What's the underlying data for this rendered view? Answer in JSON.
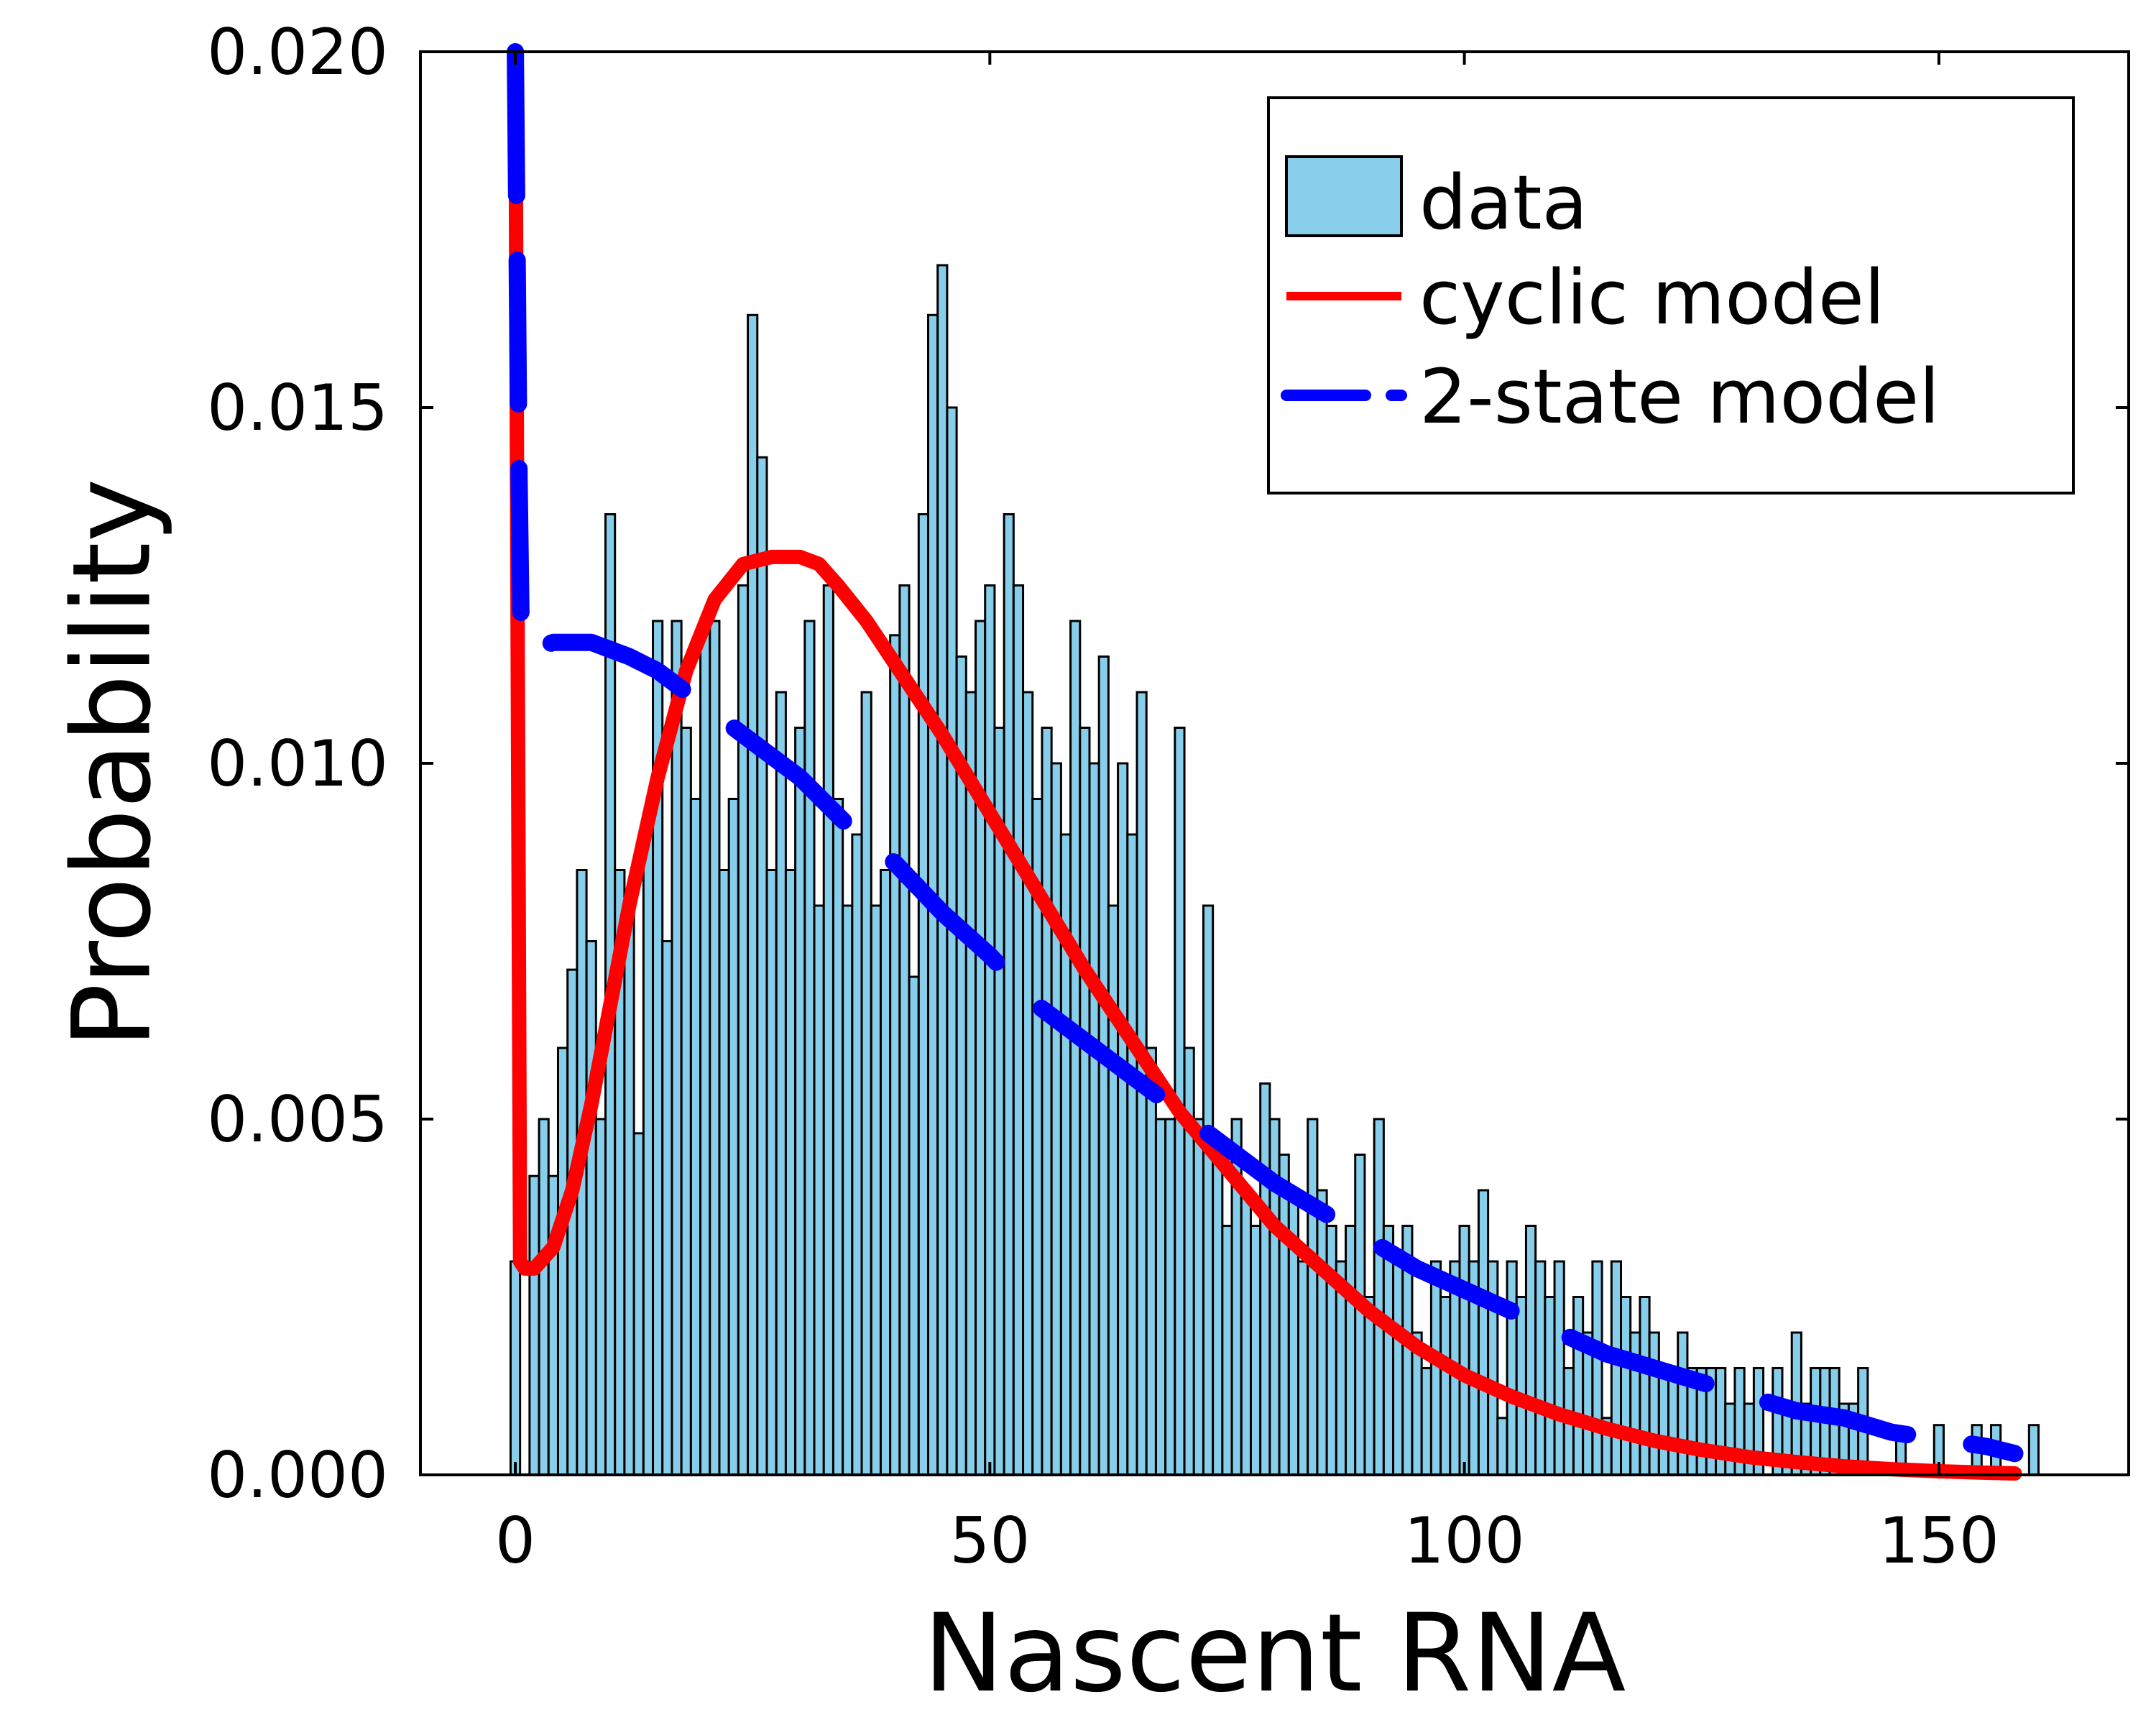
{
  "chart_data": {
    "type": "bar",
    "xlabel": "Nascent RNA",
    "ylabel": "Probability",
    "xlim": [
      -10,
      170
    ],
    "ylim": [
      0,
      0.02
    ],
    "x_ticks": [
      0,
      50,
      100,
      150
    ],
    "x_tick_labels": [
      "0",
      "50",
      "100",
      "150"
    ],
    "y_ticks": [
      0,
      0.005,
      0.01,
      0.015,
      0.02
    ],
    "y_tick_labels": [
      "0.000",
      "0.005",
      "0.010",
      "0.015",
      "0.020"
    ],
    "grid": false,
    "legend_position": "top-right",
    "histogram": {
      "name": "data",
      "color": "#87CEEB",
      "edge_color": "#000000",
      "x_start": 0,
      "bin_width": 1,
      "values": [
        0.003,
        0,
        0.0042,
        0.005,
        0.0042,
        0.006,
        0.0071,
        0.0085,
        0.0075,
        0.005,
        0.0135,
        0.0085,
        0.008,
        0.0048,
        0.0093,
        0.012,
        0.0075,
        0.012,
        0.0105,
        0.0095,
        0.012,
        0.012,
        0.0085,
        0.0095,
        0.0125,
        0.0163,
        0.0143,
        0.0085,
        0.011,
        0.0085,
        0.0105,
        0.012,
        0.008,
        0.0125,
        0.0095,
        0.008,
        0.009,
        0.011,
        0.008,
        0.0085,
        0.0118,
        0.0125,
        0.007,
        0.0135,
        0.0163,
        0.017,
        0.015,
        0.0115,
        0.011,
        0.012,
        0.0125,
        0.0105,
        0.0135,
        0.0125,
        0.011,
        0.0095,
        0.0105,
        0.01,
        0.009,
        0.012,
        0.0105,
        0.01,
        0.0115,
        0.008,
        0.01,
        0.009,
        0.011,
        0.006,
        0.005,
        0.005,
        0.0105,
        0.006,
        0.005,
        0.008,
        0.0045,
        0.0035,
        0.005,
        0.004,
        0.0035,
        0.0055,
        0.005,
        0.0045,
        0.004,
        0.003,
        0.005,
        0.004,
        0.0035,
        0.003,
        0.0035,
        0.0045,
        0.0025,
        0.005,
        0.0035,
        0.003,
        0.0035,
        0.002,
        0.0015,
        0.003,
        0.0025,
        0.003,
        0.0035,
        0.003,
        0.004,
        0.003,
        0.0008,
        0.003,
        0.0025,
        0.0035,
        0.003,
        0.0025,
        0.003,
        0.0015,
        0.0025,
        0.002,
        0.003,
        0.0008,
        0.003,
        0.0025,
        0.002,
        0.0025,
        0.002,
        0.0015,
        0.0015,
        0.002,
        0.0015,
        0.0015,
        0.0015,
        0.0015,
        0.001,
        0.0015,
        0.001,
        0.0015,
        0,
        0.0015,
        0.001,
        0.002,
        0.001,
        0.0015,
        0.0015,
        0.0015,
        0.001,
        0.001,
        0.0015,
        0,
        0,
        0,
        0.0005,
        0,
        0,
        0,
        0.0007,
        0,
        0,
        0,
        0.0007,
        0,
        0.0007,
        0,
        0,
        0,
        0.0007
      ]
    },
    "series": [
      {
        "name": "cyclic model",
        "style": "solid",
        "color": "#ff0000",
        "x": [
          0,
          0.5,
          1,
          2,
          4,
          6,
          8,
          10,
          12,
          15,
          18,
          21,
          24,
          27,
          30,
          32,
          34,
          37,
          40,
          45,
          50,
          55,
          60,
          65,
          70,
          75,
          80,
          85,
          90,
          95,
          100,
          105,
          110,
          115,
          120,
          125,
          130,
          135,
          140,
          145,
          150,
          155,
          158
        ],
        "y": [
          0.02,
          0.003,
          0.0029,
          0.0029,
          0.0032,
          0.004,
          0.0052,
          0.0066,
          0.008,
          0.0098,
          0.0113,
          0.0123,
          0.0128,
          0.0129,
          0.0129,
          0.0128,
          0.0125,
          0.012,
          0.0114,
          0.0104,
          0.0093,
          0.0082,
          0.0071,
          0.0061,
          0.0051,
          0.0043,
          0.0035,
          0.0029,
          0.0023,
          0.0018,
          0.0014,
          0.0011,
          0.00085,
          0.00065,
          0.00048,
          0.00035,
          0.00025,
          0.00018,
          0.00012,
          8e-05,
          5e-05,
          3e-05,
          2e-05
        ]
      },
      {
        "name": "2-state model",
        "style": "dashed",
        "color": "#0000ff",
        "x": [
          0,
          0.2,
          0.4,
          0.6,
          1,
          2,
          4,
          6,
          8,
          10,
          12,
          15,
          18,
          21,
          24,
          27,
          30,
          33,
          36,
          40,
          45,
          50,
          55,
          60,
          65,
          70,
          75,
          80,
          85,
          90,
          95,
          100,
          105,
          110,
          115,
          120,
          125,
          130,
          135,
          140,
          145,
          150,
          155,
          158
        ],
        "y": [
          0.02,
          0.017,
          0.014,
          0.012,
          0.0116,
          0.0116,
          0.0117,
          0.0117,
          0.0117,
          0.0116,
          0.0115,
          0.0113,
          0.011,
          0.0107,
          0.0104,
          0.0101,
          0.0098,
          0.0094,
          0.009,
          0.0086,
          0.0079,
          0.0073,
          0.0066,
          0.0061,
          0.0056,
          0.0051,
          0.0046,
          0.0041,
          0.0037,
          0.0033,
          0.0029,
          0.0026,
          0.0023,
          0.002,
          0.0017,
          0.0015,
          0.0013,
          0.0011,
          0.0009,
          0.0008,
          0.0006,
          0.0005,
          0.0004,
          0.0003
        ]
      }
    ]
  }
}
